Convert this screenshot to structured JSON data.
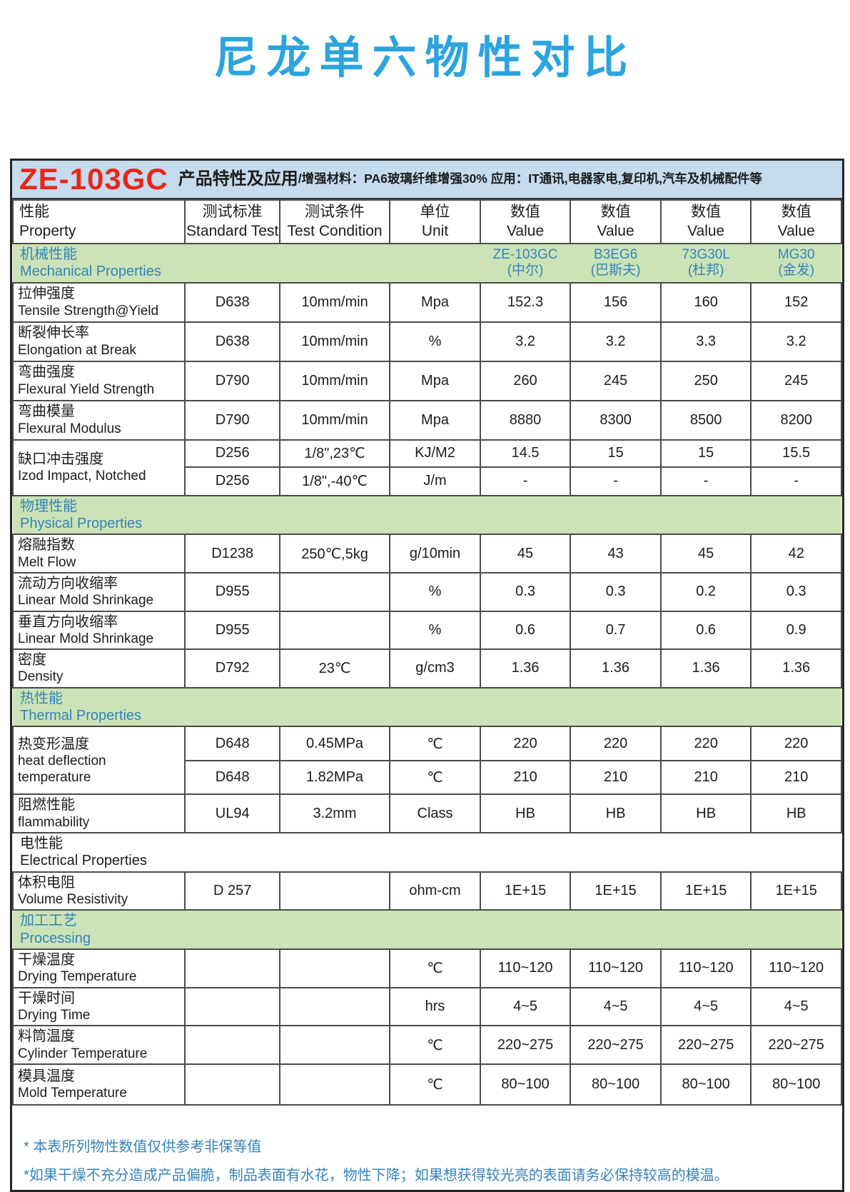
{
  "page": {
    "title": "尼龙单六物性对比"
  },
  "header_bar": {
    "product_code": "ZE-103GC",
    "title": "产品特性及应用",
    "detail": "/增强材料：PA6玻璃纤维增强30%  应用：IT通讯,电器家电,复印机,汽车及机械配件等"
  },
  "table": {
    "columns": [
      {
        "zh": "性能",
        "en": "Property"
      },
      {
        "zh": "测试标准",
        "en": "Standard Test"
      },
      {
        "zh": "测试条件",
        "en": "Test Condition"
      },
      {
        "zh": "单位",
        "en": "Unit"
      },
      {
        "zh": "数值",
        "en": "Value"
      },
      {
        "zh": "数值",
        "en": "Value"
      },
      {
        "zh": "数值",
        "en": "Value"
      },
      {
        "zh": "数值",
        "en": "Value"
      }
    ],
    "rows": [
      {
        "type": "section",
        "zh": "机械性能",
        "en": "Mechanical Properties",
        "brands": [
          {
            "code": "ZE-103GC",
            "name": "(中尔)"
          },
          {
            "code": "B3EG6",
            "name": "(巴斯夫)"
          },
          {
            "code": "73G30L",
            "name": "(杜邦)"
          },
          {
            "code": "MG30",
            "name": "(金发)"
          }
        ]
      },
      {
        "type": "data",
        "zh": "拉伸强度",
        "en": "Tensile Strength@Yield",
        "std": "D638",
        "cond": "10mm/min",
        "unit": "Mpa",
        "values": [
          "152.3",
          "156",
          "160",
          "152"
        ]
      },
      {
        "type": "data",
        "zh": "断裂伸长率",
        "en": "Elongation at Break",
        "std": "D638",
        "cond": "10mm/min",
        "unit": "%",
        "values": [
          "3.2",
          "3.2",
          "3.3",
          "3.2"
        ]
      },
      {
        "type": "data",
        "zh": "弯曲强度",
        "en": "Flexural Yield Strength",
        "std": "D790",
        "cond": "10mm/min",
        "unit": "Mpa",
        "values": [
          "260",
          "245",
          "250",
          "245"
        ]
      },
      {
        "type": "data",
        "zh": "弯曲模量",
        "en": "Flexural Modulus",
        "std": "D790",
        "cond": "10mm/min",
        "unit": "Mpa",
        "values": [
          "8880",
          "8300",
          "8500",
          "8200"
        ]
      },
      {
        "type": "data2",
        "zh": "缺口冲击强度",
        "en": "Izod Impact, Notched",
        "subs": [
          {
            "std": "D256",
            "cond": "1/8\",23℃",
            "unit": "KJ/M2",
            "values": [
              "14.5",
              "15",
              "15",
              "15.5"
            ]
          },
          {
            "std": "D256",
            "cond": "1/8\",-40℃",
            "unit": "J/m",
            "values": [
              "-",
              "-",
              "-",
              "-"
            ]
          }
        ]
      },
      {
        "type": "section",
        "zh": "物理性能",
        "en": "Physical Properties"
      },
      {
        "type": "data",
        "zh": "熔融指数",
        "en": "Melt Flow",
        "std": "D1238",
        "cond": "250℃,5kg",
        "unit": "g/10min",
        "values": [
          "45",
          "43",
          "45",
          "42"
        ]
      },
      {
        "type": "data",
        "zh": "流动方向收缩率",
        "en": "Linear Mold Shrinkage",
        "std": "D955",
        "cond": "",
        "unit": "%",
        "values": [
          "0.3",
          "0.3",
          "0.2",
          "0.3"
        ]
      },
      {
        "type": "data",
        "zh": "垂直方向收缩率",
        "en": "Linear Mold Shrinkage",
        "std": "D955",
        "cond": "",
        "unit": "%",
        "values": [
          "0.6",
          "0.7",
          "0.6",
          "0.9"
        ]
      },
      {
        "type": "data",
        "zh": "密度",
        "en": "Density",
        "std": "D792",
        "cond": "23℃",
        "unit": "g/cm3",
        "values": [
          "1.36",
          "1.36",
          "1.36",
          "1.36"
        ]
      },
      {
        "type": "section",
        "zh": "热性能",
        "en": "Thermal Properties"
      },
      {
        "type": "data2",
        "zh": "热变形温度",
        "en": "heat deflection temperature",
        "subs": [
          {
            "std": "D648",
            "cond": "0.45MPa",
            "unit": "℃",
            "values": [
              "220",
              "220",
              "220",
              "220"
            ]
          },
          {
            "std": "D648",
            "cond": "1.82MPa",
            "unit": "℃",
            "values": [
              "210",
              "210",
              "210",
              "210"
            ]
          }
        ]
      },
      {
        "type": "data",
        "zh": "阻燃性能",
        "en": "flammability",
        "std": "UL94",
        "cond": "3.2mm",
        "unit": "Class",
        "values": [
          "HB",
          "HB",
          "HB",
          "HB"
        ]
      },
      {
        "type": "plain",
        "zh": "电性能",
        "en": "Electrical Properties"
      },
      {
        "type": "data",
        "zh": "体积电阻",
        "en": "Volume Resistivity",
        "std": "D 257",
        "cond": "",
        "unit": "ohm-cm",
        "values": [
          "1E+15",
          "1E+15",
          "1E+15",
          "1E+15"
        ]
      },
      {
        "type": "section",
        "zh": "加工工艺",
        "en": "Processing"
      },
      {
        "type": "data",
        "zh": "干燥温度",
        "en": "Drying Temperature",
        "std": "",
        "cond": "",
        "unit": "℃",
        "values": [
          "110~120",
          "110~120",
          "110~120",
          "110~120"
        ]
      },
      {
        "type": "data",
        "zh": "干燥时间",
        "en": "Drying Time",
        "std": "",
        "cond": "",
        "unit": "hrs",
        "values": [
          "4~5",
          "4~5",
          "4~5",
          "4~5"
        ]
      },
      {
        "type": "data",
        "zh": "料筒温度",
        "en": "Cylinder Temperature",
        "std": "",
        "cond": "",
        "unit": "℃",
        "values": [
          "220~275",
          "220~275",
          "220~275",
          "220~275"
        ]
      },
      {
        "type": "data",
        "zh": "模具温度",
        "en": "Mold Temperature",
        "std": "",
        "cond": "",
        "unit": "℃",
        "values": [
          "80~100",
          "80~100",
          "80~100",
          "80~100"
        ]
      }
    ]
  },
  "footnotes": [
    "* 本表所列物性数值仅供参考非保等值",
    "*如果干燥不充分造成产品偏脆，制品表面有水花，物性下降；如果想获得较光亮的表面请务必保持较高的模温。"
  ],
  "colors": {
    "title_blue": "#2ba4de",
    "section_blue": "#3583bb",
    "band_green": "#cbe3b6",
    "header_bar_bg": "#c6dbee",
    "product_red": "#e8271b",
    "border": "#4b4b47"
  }
}
